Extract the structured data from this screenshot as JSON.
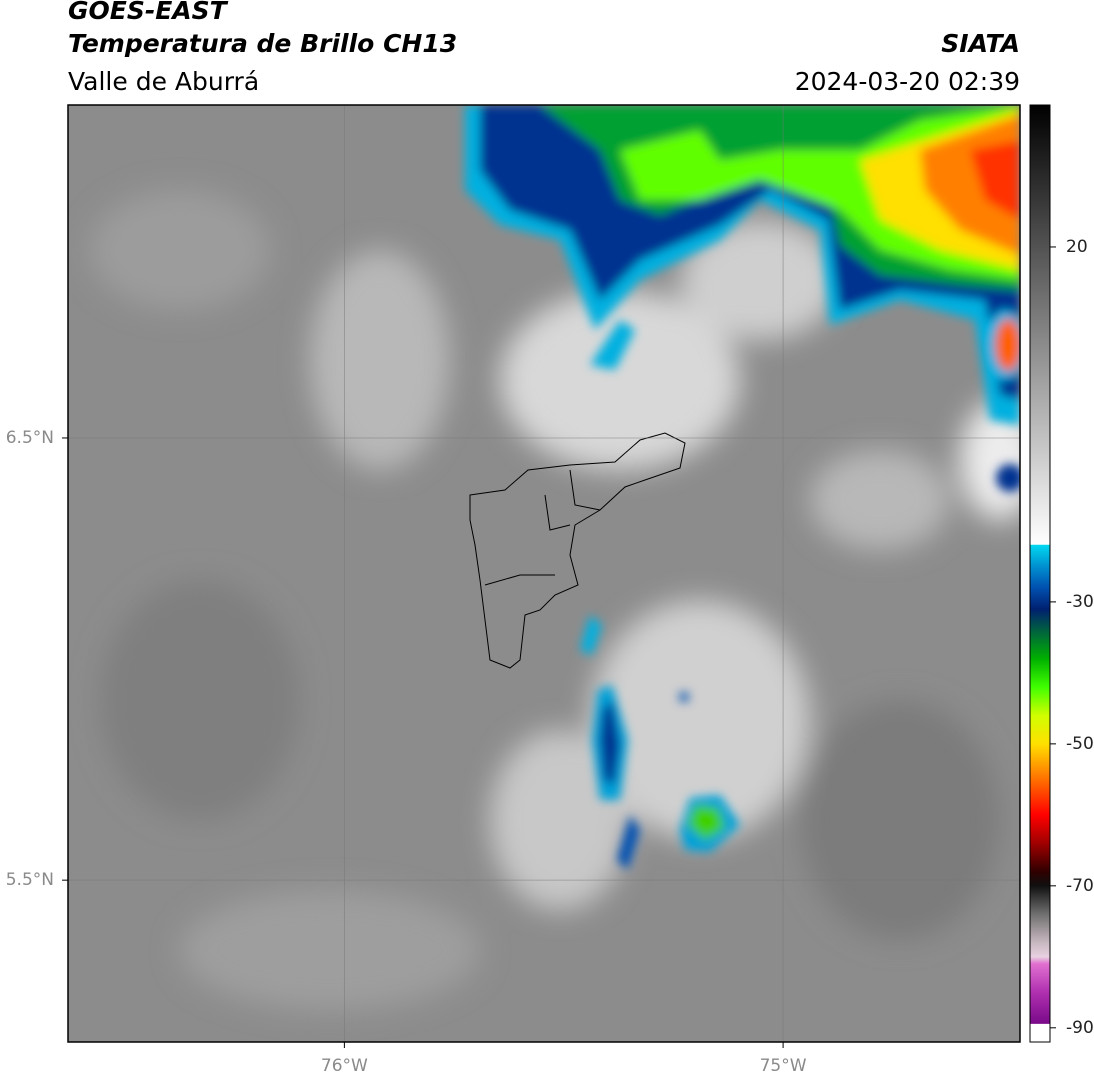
{
  "header": {
    "title": "GOES-EAST",
    "subtitle": "Temperatura de Brillo CH13",
    "region": "Valle de Aburrá",
    "source": "SIATA",
    "timestamp": "2024-03-20 02:39"
  },
  "map": {
    "xlim": [
      -76.63,
      -74.46
    ],
    "ylim": [
      5.134,
      7.253
    ],
    "xticks": [
      {
        "value": -76,
        "label": "76°W"
      },
      {
        "value": -75,
        "label": "75°W"
      }
    ],
    "yticks": [
      {
        "value": 6.5,
        "label": "6.5°N"
      },
      {
        "value": 5.5,
        "label": "5.5°N"
      }
    ]
  },
  "colorbar": {
    "lim": [
      -92,
      40
    ],
    "ticks": [
      20,
      -30,
      -50,
      -70,
      -90
    ],
    "stops": [
      {
        "value": -92,
        "color": "#ffffff"
      },
      {
        "value": -89.5,
        "color": "#ffffff"
      },
      {
        "value": -89.4,
        "color": "#7a0a8a"
      },
      {
        "value": -85,
        "color": "#b030b0"
      },
      {
        "value": -81,
        "color": "#e070d0"
      },
      {
        "value": -80,
        "color": "#e8d0e0"
      },
      {
        "value": -78,
        "color": "#c8b8c0"
      },
      {
        "value": -74,
        "color": "#707070"
      },
      {
        "value": -70,
        "color": "#101010"
      },
      {
        "value": -68,
        "color": "#300000"
      },
      {
        "value": -64,
        "color": "#a00000"
      },
      {
        "value": -60,
        "color": "#ff0000"
      },
      {
        "value": -55,
        "color": "#ff7000"
      },
      {
        "value": -50,
        "color": "#ffe000"
      },
      {
        "value": -46,
        "color": "#d0ff00"
      },
      {
        "value": -42,
        "color": "#40ff00"
      },
      {
        "value": -38,
        "color": "#00b000"
      },
      {
        "value": -34,
        "color": "#006040"
      },
      {
        "value": -31,
        "color": "#002070"
      },
      {
        "value": -28,
        "color": "#0050b0"
      },
      {
        "value": -25,
        "color": "#0090d0"
      },
      {
        "value": -22,
        "color": "#00d8f0"
      },
      {
        "value": -21.9,
        "color": "#ffffff"
      },
      {
        "value": 40,
        "color": "#000000"
      }
    ]
  }
}
